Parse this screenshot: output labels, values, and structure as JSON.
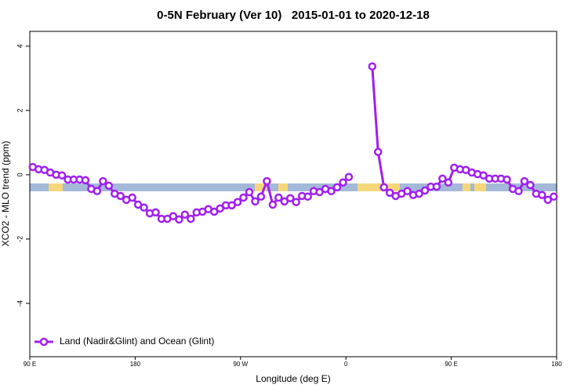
{
  "chart_data": {
    "type": "line",
    "title": "0-5N February (Ver 10)   2015-01-01 to 2020-12-18",
    "x_label": "Longitude (deg E)",
    "y_label": "XCO2 - MLO trend (ppm)",
    "x": [
      92.5,
      97.5,
      102.5,
      107.5,
      112.5,
      117.5,
      122.5,
      127.5,
      132.5,
      137.5,
      142.5,
      147.5,
      152.5,
      157.5,
      162.5,
      167.5,
      172.5,
      177.5,
      182.5,
      187.5,
      192.5,
      197.5,
      202.5,
      207.5,
      212.5,
      217.5,
      222.5,
      227.5,
      232.5,
      237.5,
      242.5,
      247.5,
      252.5,
      257.5,
      262.5,
      267.5,
      272.5,
      277.5,
      282.5,
      287.5,
      292.5,
      297.5,
      302.5,
      307.5,
      312.5,
      317.5,
      322.5,
      327.5,
      332.5,
      337.5,
      342.5,
      347.5,
      352.5,
      357.5,
      362.5,
      367.5,
      372.5,
      377.5,
      382.5,
      387.5,
      392.5,
      397.5,
      402.5,
      407.5,
      412.5,
      417.5,
      422.5,
      427.5,
      432.5,
      437.5,
      442.5,
      447.5,
      452.5,
      457.5,
      462.5,
      467.5,
      472.5,
      477.5,
      482.5,
      487.5,
      492.5,
      497.5,
      502.5,
      507.5,
      512.5,
      517.5,
      522.5,
      527.5,
      532.5,
      537.5
    ],
    "series": [
      {
        "name": "Land (Nadir&Glint) and Ocean (Glint)",
        "color": "#a020f0",
        "values": [
          0.24,
          0.17,
          0.15,
          0.07,
          0,
          -0.02,
          -0.15,
          -0.15,
          -0.15,
          -0.17,
          -0.44,
          -0.51,
          -0.2,
          -0.34,
          -0.59,
          -0.66,
          -0.78,
          -0.71,
          -0.93,
          -1.02,
          -1.2,
          -1.17,
          -1.37,
          -1.37,
          -1.29,
          -1.39,
          -1.24,
          -1.37,
          -1.17,
          -1.15,
          -1.07,
          -1.15,
          -1.05,
          -0.95,
          -0.95,
          -0.85,
          -0.71,
          -0.54,
          -0.83,
          -0.68,
          -0.2,
          -0.93,
          -0.71,
          -0.83,
          -0.73,
          -0.85,
          -0.66,
          -0.68,
          -0.51,
          -0.54,
          -0.44,
          -0.51,
          -0.39,
          -0.24,
          -0.07,
          null,
          null,
          null,
          3.37,
          0.71,
          -0.39,
          -0.56,
          -0.66,
          -0.59,
          -0.51,
          -0.63,
          -0.59,
          -0.49,
          -0.37,
          -0.37,
          -0.12,
          -0.24,
          0.22,
          0.17,
          0.15,
          0.07,
          0.02,
          -0.02,
          -0.12,
          -0.12,
          -0.12,
          -0.15,
          -0.44,
          -0.51,
          -0.2,
          -0.32,
          -0.59,
          -0.63,
          -0.78,
          -0.68
        ]
      }
    ],
    "xlim": [
      90,
      540
    ],
    "xticks": [
      {
        "value": 90,
        "label": "90 E"
      },
      180,
      {
        "value": 270,
        "label": "90 W"
      },
      {
        "value": 360,
        "label": "0"
      },
      {
        "value": 450,
        "label": "90 E"
      },
      {
        "value": 540,
        "label": "180"
      }
    ],
    "ylim": [
      -5.66,
      4.46
    ],
    "yticks": [
      4,
      2,
      0,
      -2,
      -4
    ],
    "legend": "bottom-left"
  }
}
